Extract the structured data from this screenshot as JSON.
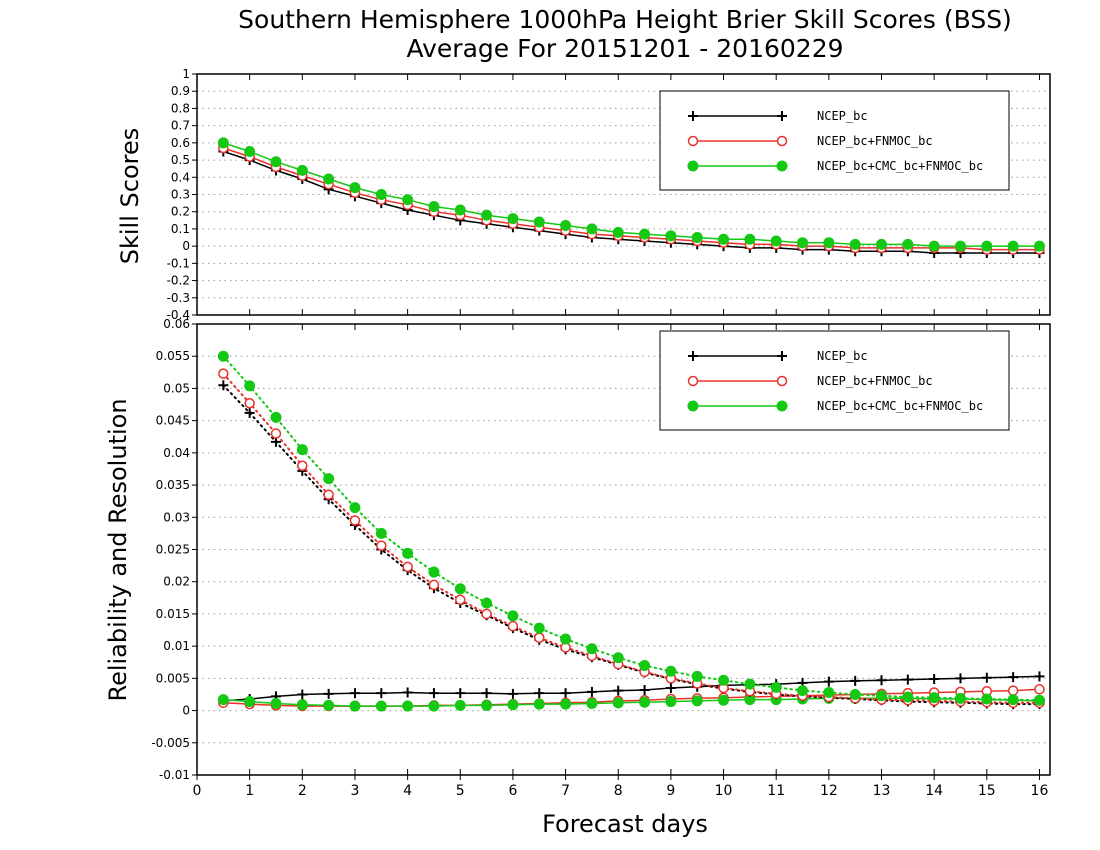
{
  "title_line1": "Southern Hemisphere 1000hPa Height Brier Skill Scores (BSS)",
  "title_line2": "Average For 20151201 - 20160229",
  "x_axis_label": "Forecast days",
  "colors": {
    "ncep": "#000000",
    "fnmoc": "#e8312b",
    "cmc": "#14c814",
    "grid": "#9a9a9a"
  },
  "chart_data": [
    {
      "type": "line",
      "ylabel": "Skill Scores",
      "xlim": [
        0,
        16.2
      ],
      "ylim": [
        -0.4,
        1
      ],
      "xticks": [
        0,
        1,
        2,
        3,
        4,
        5,
        6,
        7,
        8,
        9,
        10,
        11,
        12,
        13,
        14,
        15,
        16
      ],
      "yticks": [
        -0.4,
        -0.3,
        -0.2,
        -0.1,
        0,
        0.1,
        0.2,
        0.3,
        0.4,
        0.5,
        0.6,
        0.7,
        0.8,
        0.9,
        1
      ],
      "ytick_labels": [
        "-0.4",
        "-0.3",
        "-0.2",
        "-0.1",
        "0",
        "0.1",
        "0.2",
        "0.3",
        "0.4",
        "0.5",
        "0.6",
        "0.7",
        "0.8",
        "0.9",
        "1"
      ],
      "grid": true,
      "legend_position": "top-right",
      "x": [
        0.5,
        1,
        1.5,
        2,
        2.5,
        3,
        3.5,
        4,
        4.5,
        5,
        5.5,
        6,
        6.5,
        7,
        7.5,
        8,
        8.5,
        9,
        9.5,
        10,
        10.5,
        11,
        11.5,
        12,
        12.5,
        13,
        13.5,
        14,
        14.5,
        15,
        15.5,
        16
      ],
      "series": [
        {
          "name": "NCEP_bc",
          "marker": "plus",
          "color_key": "ncep",
          "line": "solid",
          "values": [
            0.55,
            0.5,
            0.44,
            0.39,
            0.33,
            0.29,
            0.25,
            0.21,
            0.18,
            0.15,
            0.13,
            0.11,
            0.09,
            0.07,
            0.05,
            0.04,
            0.03,
            0.02,
            0.01,
            0.0,
            -0.01,
            -0.01,
            -0.02,
            -0.02,
            -0.03,
            -0.03,
            -0.03,
            -0.04,
            -0.04,
            -0.04,
            -0.04,
            -0.04
          ]
        },
        {
          "name": "NCEP_bc+FNMOC_bc",
          "marker": "circle-open",
          "color_key": "fnmoc",
          "line": "solid",
          "values": [
            0.57,
            0.52,
            0.46,
            0.41,
            0.36,
            0.31,
            0.27,
            0.24,
            0.2,
            0.18,
            0.15,
            0.13,
            0.11,
            0.09,
            0.07,
            0.06,
            0.05,
            0.04,
            0.03,
            0.02,
            0.01,
            0.01,
            0.0,
            0.0,
            -0.01,
            -0.01,
            -0.01,
            -0.01,
            -0.01,
            -0.02,
            -0.02,
            -0.02
          ]
        },
        {
          "name": "NCEP_bc+CMC_bc+FNMOC_bc",
          "marker": "circle-filled",
          "color_key": "cmc",
          "line": "solid",
          "values": [
            0.6,
            0.55,
            0.49,
            0.44,
            0.39,
            0.34,
            0.3,
            0.27,
            0.23,
            0.21,
            0.18,
            0.16,
            0.14,
            0.12,
            0.1,
            0.08,
            0.07,
            0.06,
            0.05,
            0.04,
            0.04,
            0.03,
            0.02,
            0.02,
            0.01,
            0.01,
            0.01,
            0.0,
            0.0,
            0.0,
            0.0,
            0.0
          ]
        }
      ]
    },
    {
      "type": "line",
      "ylabel": "Reliability and Resolution",
      "xlim": [
        0,
        16.2
      ],
      "ylim": [
        -0.01,
        0.06
      ],
      "xticks": [
        0,
        1,
        2,
        3,
        4,
        5,
        6,
        7,
        8,
        9,
        10,
        11,
        12,
        13,
        14,
        15,
        16
      ],
      "yticks": [
        -0.01,
        -0.005,
        0,
        0.005,
        0.01,
        0.015,
        0.02,
        0.025,
        0.03,
        0.035,
        0.04,
        0.045,
        0.05,
        0.055,
        0.06
      ],
      "ytick_labels": [
        "-0.01",
        "-0.005",
        "0",
        "0.005",
        "0.01",
        "0.015",
        "0.02",
        "0.025",
        "0.03",
        "0.035",
        "0.04",
        "0.045",
        "0.05",
        "0.055",
        "0.06"
      ],
      "grid": true,
      "legend_position": "top-right",
      "x": [
        0.5,
        1,
        1.5,
        2,
        2.5,
        3,
        3.5,
        4,
        4.5,
        5,
        5.5,
        6,
        6.5,
        7,
        7.5,
        8,
        8.5,
        9,
        9.5,
        10,
        10.5,
        11,
        11.5,
        12,
        12.5,
        13,
        13.5,
        14,
        14.5,
        15,
        15.5,
        16
      ],
      "series": [
        {
          "name": "NCEP_bc",
          "marker": "plus",
          "color_key": "ncep",
          "line": "solid",
          "legend": true,
          "values": [
            0.0015,
            0.0018,
            0.0022,
            0.0025,
            0.0026,
            0.0027,
            0.0027,
            0.0028,
            0.0027,
            0.0027,
            0.0027,
            0.0026,
            0.0027,
            0.0027,
            0.0029,
            0.0031,
            0.0032,
            0.0035,
            0.0037,
            0.0039,
            0.004,
            0.0041,
            0.0043,
            0.0045,
            0.0046,
            0.0047,
            0.0048,
            0.0049,
            0.005,
            0.0051,
            0.0052,
            0.0053
          ]
        },
        {
          "name": "NCEP_bc+FNMOC_bc",
          "marker": "circle-open",
          "color_key": "fnmoc",
          "line": "solid",
          "legend": true,
          "values": [
            0.0012,
            0.001,
            0.0008,
            0.0007,
            0.0007,
            0.0007,
            0.0007,
            0.0007,
            0.0008,
            0.0008,
            0.0009,
            0.001,
            0.0011,
            0.0012,
            0.0013,
            0.0015,
            0.0016,
            0.0018,
            0.0019,
            0.002,
            0.0021,
            0.0022,
            0.0023,
            0.0024,
            0.0025,
            0.0026,
            0.0027,
            0.0028,
            0.0029,
            0.003,
            0.0031,
            0.0033
          ]
        },
        {
          "name": "NCEP_bc+CMC_bc+FNMOC_bc",
          "marker": "circle-filled",
          "color_key": "cmc",
          "line": "solid",
          "legend": true,
          "values": [
            0.0017,
            0.0014,
            0.0011,
            0.0009,
            0.0008,
            0.0007,
            0.0007,
            0.0007,
            0.0007,
            0.0008,
            0.0008,
            0.0009,
            0.001,
            0.001,
            0.0011,
            0.0012,
            0.0013,
            0.0014,
            0.0015,
            0.0016,
            0.0017,
            0.0017,
            0.0018,
            0.0019,
            0.0019,
            0.0019,
            0.0019,
            0.0018,
            0.0018,
            0.0017,
            0.0016,
            0.0015
          ]
        },
        {
          "name": "NCEP_bc",
          "marker": "plus",
          "color_key": "ncep",
          "line": "dotted",
          "legend": false,
          "values": [
            0.0505,
            0.0462,
            0.0417,
            0.0372,
            0.0328,
            0.0288,
            0.025,
            0.0218,
            0.019,
            0.0167,
            0.0148,
            0.0128,
            0.011,
            0.0095,
            0.0083,
            0.0071,
            0.0059,
            0.0049,
            0.0041,
            0.0034,
            0.0029,
            0.0025,
            0.0022,
            0.002,
            0.0018,
            0.0016,
            0.0014,
            0.0013,
            0.0012,
            0.0011,
            0.001,
            0.001
          ]
        },
        {
          "name": "NCEP_bc+FNMOC_bc",
          "marker": "circle-open",
          "color_key": "fnmoc",
          "line": "dotted",
          "legend": false,
          "values": [
            0.0523,
            0.0477,
            0.043,
            0.038,
            0.0335,
            0.0295,
            0.0256,
            0.0223,
            0.0195,
            0.0172,
            0.015,
            0.0131,
            0.0113,
            0.0098,
            0.0085,
            0.0072,
            0.006,
            0.005,
            0.0042,
            0.0035,
            0.003,
            0.0026,
            0.0023,
            0.0021,
            0.0019,
            0.0017,
            0.0016,
            0.0015,
            0.0014,
            0.0013,
            0.0012,
            0.0012
          ]
        },
        {
          "name": "NCEP_bc+CMC_bc+FNMOC_bc",
          "marker": "circle-filled",
          "color_key": "cmc",
          "line": "dotted",
          "legend": false,
          "values": [
            0.055,
            0.0504,
            0.0455,
            0.0405,
            0.036,
            0.0315,
            0.0275,
            0.0244,
            0.0215,
            0.0189,
            0.0167,
            0.0147,
            0.0128,
            0.0111,
            0.0096,
            0.0082,
            0.007,
            0.0061,
            0.0053,
            0.0047,
            0.0041,
            0.0036,
            0.0031,
            0.0028,
            0.0025,
            0.0023,
            0.0021,
            0.002,
            0.0019,
            0.0018,
            0.0017,
            0.0016
          ]
        }
      ]
    }
  ]
}
